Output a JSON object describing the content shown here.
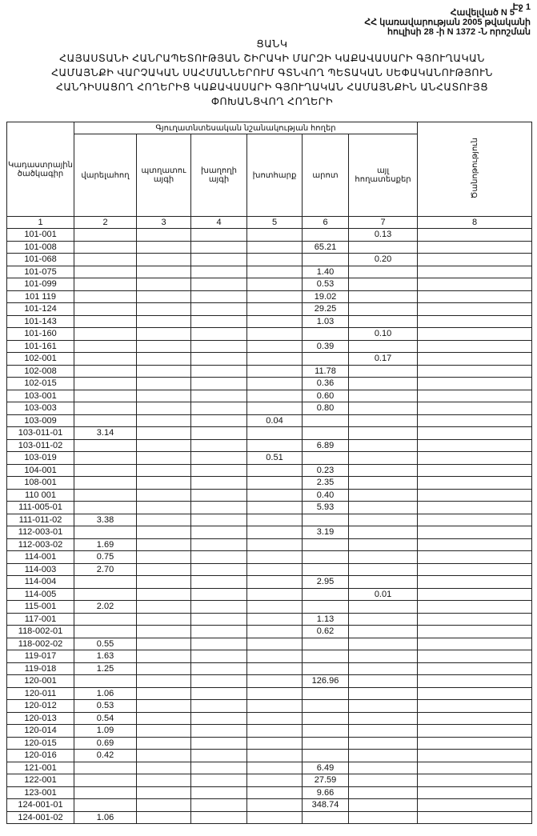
{
  "header": {
    "page_label": "Էջ 1",
    "appendix": "Հավելված N 5",
    "decree_line1": "ՀՀ կառավարության 2005 թվականի",
    "decree_line2": "հուլիսի 28 -ի N 1372 -Ն որոշման",
    "list_title": "ՑԱՆԿ",
    "title_lines": [
      "ՀԱՅԱՍՏԱՆԻ ՀԱՆՐԱՊԵՏՈՒԹՅԱՆ ՇԻՐԱԿԻ ՄԱՐԶԻ ԿԱՔԱՎԱՍԱՐԻ ԳՅՈՒՂԱԿԱՆ",
      "ՀԱՄԱՅՆՔԻ ՎԱՐՉԱԿԱՆ ՍԱՀՄԱՆՆԵՐՈՒՄ ԳՏՆՎՈՂ ՊԵՏԱԿԱՆ ՍԵՓԱԿԱՆՈՒԹՅՈՒՆ",
      "ՀԱՆԴԻՍԱՑՈՂ ՀՈՂԵՐԻՑ ԿԱՔԱՎԱՍԱՐԻ ԳՅՈՒՂԱԿԱՆ ՀԱՄԱՅՆՔԻՆ ԱՆՀԱՏՈՒՅՑ",
      "ՓՈԽԱՆՑՎՈՂ ՀՈՂԵՐԻ"
    ]
  },
  "table": {
    "col_cadastral": "Կադաստրային ծածկագիր",
    "group_header": "Գյուղատնտեսական նշանակության հողեր",
    "col_arable": "վարելահող",
    "col_orchard": "պտղատու այգի",
    "col_vineyard": "խաղողի այգի",
    "col_hayfield": "խոտհարք",
    "col_pasture": "արոտ",
    "col_other": "այլ հողատեսքեր",
    "col_note": "Ծանոթություն",
    "column_numbers": [
      "1",
      "2",
      "3",
      "4",
      "5",
      "6",
      "7",
      "8"
    ],
    "rows": [
      [
        "101-001",
        "",
        "",
        "",
        "",
        "",
        "0.13",
        ""
      ],
      [
        "101-008",
        "",
        "",
        "",
        "",
        "65.21",
        "",
        ""
      ],
      [
        "101-068",
        "",
        "",
        "",
        "",
        "",
        "0.20",
        ""
      ],
      [
        "101-075",
        "",
        "",
        "",
        "",
        "1.40",
        "",
        ""
      ],
      [
        "101-099",
        "",
        "",
        "",
        "",
        "0.53",
        "",
        ""
      ],
      [
        "101 119",
        "",
        "",
        "",
        "",
        "19.02",
        "",
        ""
      ],
      [
        "101-124",
        "",
        "",
        "",
        "",
        "29.25",
        "",
        ""
      ],
      [
        "101-143",
        "",
        "",
        "",
        "",
        "1.03",
        "",
        ""
      ],
      [
        "101-160",
        "",
        "",
        "",
        "",
        "",
        "0.10",
        ""
      ],
      [
        "101-161",
        "",
        "",
        "",
        "",
        "0.39",
        "",
        ""
      ],
      [
        "102-001",
        "",
        "",
        "",
        "",
        "",
        "0.17",
        ""
      ],
      [
        "102-008",
        "",
        "",
        "",
        "",
        "11.78",
        "",
        ""
      ],
      [
        "102-015",
        "",
        "",
        "",
        "",
        "0.36",
        "",
        ""
      ],
      [
        "103-001",
        "",
        "",
        "",
        "",
        "0.60",
        "",
        ""
      ],
      [
        "103-003",
        "",
        "",
        "",
        "",
        "0.80",
        "",
        ""
      ],
      [
        "103-009",
        "",
        "",
        "",
        "0.04",
        "",
        "",
        ""
      ],
      [
        "103-011-01",
        "3.14",
        "",
        "",
        "",
        "",
        "",
        ""
      ],
      [
        "103-011-02",
        "",
        "",
        "",
        "",
        "6.89",
        "",
        ""
      ],
      [
        "103-019",
        "",
        "",
        "",
        "0.51",
        "",
        "",
        ""
      ],
      [
        "104-001",
        "",
        "",
        "",
        "",
        "0.23",
        "",
        ""
      ],
      [
        "108-001",
        "",
        "",
        "",
        "",
        "2.35",
        "",
        ""
      ],
      [
        "110 001",
        "",
        "",
        "",
        "",
        "0.40",
        "",
        ""
      ],
      [
        "111-005-01",
        "",
        "",
        "",
        "",
        "5.93",
        "",
        ""
      ],
      [
        "111-011-02",
        "3.38",
        "",
        "",
        "",
        "",
        "",
        ""
      ],
      [
        "112-003-01",
        "",
        "",
        "",
        "",
        "3.19",
        "",
        ""
      ],
      [
        "112-003-02",
        "1.69",
        "",
        "",
        "",
        "",
        "",
        ""
      ],
      [
        "114-001",
        "0.75",
        "",
        "",
        "",
        "",
        "",
        ""
      ],
      [
        "114-003",
        "2.70",
        "",
        "",
        "",
        "",
        "",
        ""
      ],
      [
        "114-004",
        "",
        "",
        "",
        "",
        "2.95",
        "",
        ""
      ],
      [
        "114-005",
        "",
        "",
        "",
        "",
        "",
        "0.01",
        ""
      ],
      [
        "115-001",
        "2.02",
        "",
        "",
        "",
        "",
        "",
        ""
      ],
      [
        "117-001",
        "",
        "",
        "",
        "",
        "1.13",
        "",
        ""
      ],
      [
        "118-002-01",
        "",
        "",
        "",
        "",
        "0.62",
        "",
        ""
      ],
      [
        "118-002-02",
        "0.55",
        "",
        "",
        "",
        "",
        "",
        ""
      ],
      [
        "119-017",
        "1.63",
        "",
        "",
        "",
        "",
        "",
        ""
      ],
      [
        "119-018",
        "1.25",
        "",
        "",
        "",
        "",
        "",
        ""
      ],
      [
        "120-001",
        "",
        "",
        "",
        "",
        "126.96",
        "",
        ""
      ],
      [
        "120-011",
        "1.06",
        "",
        "",
        "",
        "",
        "",
        ""
      ],
      [
        "120-012",
        "0.53",
        "",
        "",
        "",
        "",
        "",
        ""
      ],
      [
        "120-013",
        "0.54",
        "",
        "",
        "",
        "",
        "",
        ""
      ],
      [
        "120-014",
        "1.09",
        "",
        "",
        "",
        "",
        "",
        ""
      ],
      [
        "120-015",
        "0.69",
        "",
        "",
        "",
        "",
        "",
        ""
      ],
      [
        "120-016",
        "0.42",
        "",
        "",
        "",
        "",
        "",
        ""
      ],
      [
        "121-001",
        "",
        "",
        "",
        "",
        "6.49",
        "",
        ""
      ],
      [
        "122-001",
        "",
        "",
        "",
        "",
        "27.59",
        "",
        ""
      ],
      [
        "123-001",
        "",
        "",
        "",
        "",
        "9.66",
        "",
        ""
      ],
      [
        "124-001-01",
        "",
        "",
        "",
        "",
        "348.74",
        "",
        ""
      ],
      [
        "124-001-02",
        "1.06",
        "",
        "",
        "",
        "",
        "",
        ""
      ]
    ]
  }
}
